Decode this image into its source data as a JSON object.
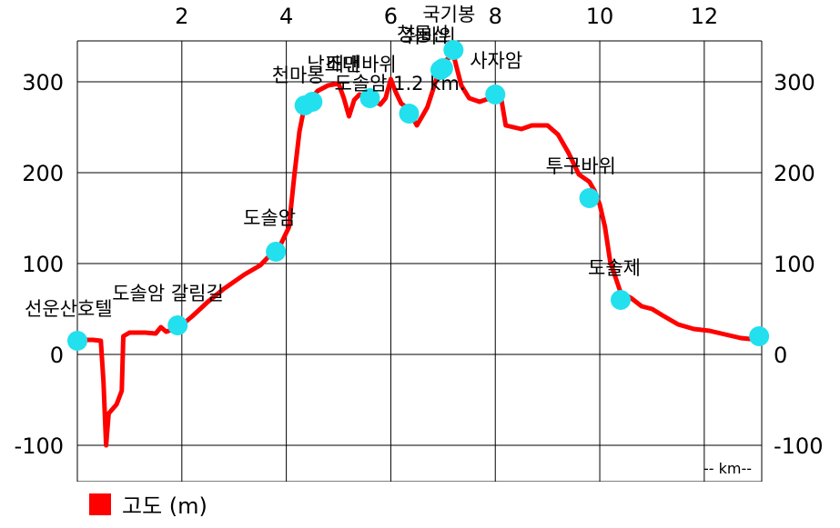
{
  "chart_data": {
    "type": "line",
    "title": "",
    "xlabel": "-- km--",
    "ylabel": "",
    "xlim": [
      0,
      13.1
    ],
    "ylim": [
      -140,
      345
    ],
    "x_ticks": [
      2,
      4,
      6,
      8,
      10,
      12
    ],
    "x_tick_labels": [
      "2",
      "4",
      "6",
      "8",
      "10",
      "12"
    ],
    "y_ticks": [
      -100,
      0,
      100,
      200,
      300
    ],
    "y_tick_labels": [
      "-100",
      "0",
      "100",
      "200",
      "300"
    ],
    "grid": true,
    "legend_position": "bottom-left",
    "series": [
      {
        "name": "고도 (m)",
        "color": "#ff0000",
        "x": [
          0.0,
          0.3,
          0.45,
          0.5,
          0.55,
          0.6,
          0.75,
          0.85,
          0.88,
          1.0,
          1.3,
          1.5,
          1.6,
          1.7,
          1.95,
          2.2,
          2.5,
          2.8,
          3.0,
          3.2,
          3.5,
          3.75,
          3.9,
          4.05,
          4.15,
          4.25,
          4.35,
          4.45,
          4.6,
          4.8,
          5.0,
          5.1,
          5.2,
          5.3,
          5.4,
          5.6,
          5.8,
          5.9,
          6.0,
          6.05,
          6.1,
          6.2,
          6.3,
          6.4,
          6.5,
          6.6,
          6.7,
          6.8,
          6.9,
          7.0,
          7.1,
          7.2,
          7.25,
          7.35,
          7.5,
          7.7,
          7.9,
          8.1,
          8.2,
          8.5,
          8.7,
          9.0,
          9.2,
          9.4,
          9.6,
          9.8,
          9.9,
          10.0,
          10.1,
          10.2,
          10.4,
          10.6,
          10.8,
          11.0,
          11.2,
          11.5,
          11.8,
          12.1,
          12.4,
          12.7,
          13.05
        ],
        "values": [
          16,
          16,
          15,
          -30,
          -100,
          -65,
          -55,
          -40,
          20,
          24,
          24,
          23,
          30,
          25,
          30,
          42,
          58,
          72,
          80,
          88,
          98,
          113,
          122,
          140,
          195,
          245,
          274,
          280,
          290,
          296,
          298,
          282,
          262,
          280,
          286,
          282,
          275,
          282,
          303,
          295,
          288,
          276,
          272,
          262,
          252,
          262,
          272,
          290,
          308,
          320,
          326,
          330,
          318,
          296,
          282,
          278,
          282,
          286,
          252,
          248,
          252,
          252,
          242,
          222,
          198,
          190,
          180,
          165,
          140,
          102,
          68,
          62,
          53,
          50,
          43,
          33,
          28,
          26,
          22,
          18,
          16
        ]
      }
    ],
    "waypoints": [
      {
        "name": "선운산호텔",
        "x": 0.0,
        "y": 15
      },
      {
        "name": "도솔암 갈림길",
        "x": 1.92,
        "y": 32
      },
      {
        "name": "도솔암",
        "x": 3.8,
        "y": 113
      },
      {
        "name": "천마봉",
        "x": 4.35,
        "y": 274
      },
      {
        "name": "낙조대",
        "x": 4.5,
        "y": 278
      },
      {
        "name": "배맨바위",
        "x": 5.6,
        "y": 282
      },
      {
        "name": "도솔암 1.2 km.",
        "x": 6.35,
        "y": 265
      },
      {
        "name": "청룡산",
        "x": 6.95,
        "y": 313
      },
      {
        "name": "쥐바위",
        "x": 7.0,
        "y": 315
      },
      {
        "name": "국기봉",
        "x": 7.2,
        "y": 335
      },
      {
        "name": "사자암",
        "x": 8.0,
        "y": 286
      },
      {
        "name": "투구바위",
        "x": 9.8,
        "y": 172
      },
      {
        "name": "도솔제",
        "x": 10.4,
        "y": 60
      },
      {
        "name": "",
        "x": 13.05,
        "y": 20
      }
    ]
  }
}
